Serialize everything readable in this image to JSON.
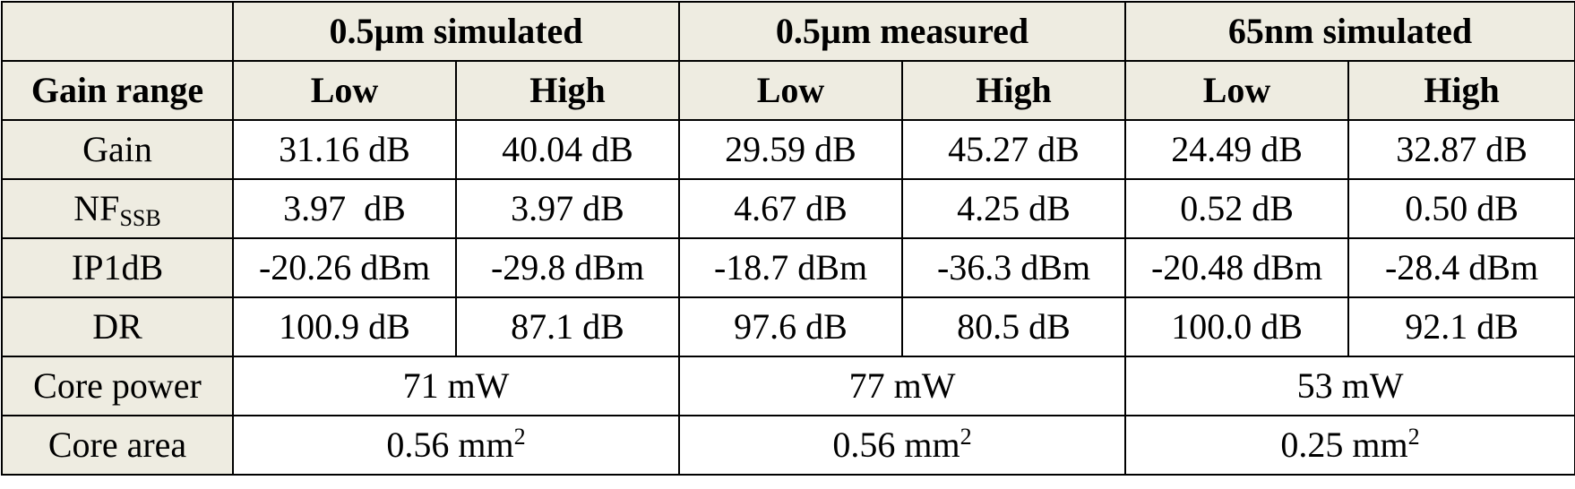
{
  "table": {
    "groups": [
      {
        "label": "0.5µm simulated"
      },
      {
        "label": "0.5µm measured"
      },
      {
        "label": "65nm simulated"
      }
    ],
    "gain_range_label": "Gain range",
    "sub_headers": [
      "Low",
      "High",
      "Low",
      "High",
      "Low",
      "High"
    ],
    "rows": [
      {
        "label": "Gain",
        "cells": [
          "31.16 dB",
          "40.04 dB",
          "29.59 dB",
          "45.27 dB",
          "24.49 dB",
          "32.87 dB"
        ]
      },
      {
        "label_main": "NF",
        "label_sub": "SSB",
        "cells": [
          "3.97  dB",
          "3.97 dB",
          "4.67 dB",
          "4.25 dB",
          "0.52 dB",
          "0.50 dB"
        ]
      },
      {
        "label": "IP1dB",
        "cells": [
          "-20.26 dBm",
          "-29.8 dBm",
          "-18.7 dBm",
          "-36.3 dBm",
          "-20.48 dBm",
          "-28.4 dBm"
        ]
      },
      {
        "label": "DR",
        "cells": [
          "100.9 dB",
          "87.1 dB",
          "97.6 dB",
          "80.5 dB",
          "100.0 dB",
          "92.1 dB"
        ]
      }
    ],
    "core_power": {
      "label": "Core power",
      "values": [
        "71 mW",
        "77 mW",
        "53 mW"
      ]
    },
    "core_area": {
      "label": "Core area",
      "values": [
        {
          "value": "0.56 mm",
          "exp": "2"
        },
        {
          "value": "0.56 mm",
          "exp": "2"
        },
        {
          "value": "0.25 mm",
          "exp": "2"
        }
      ]
    }
  }
}
